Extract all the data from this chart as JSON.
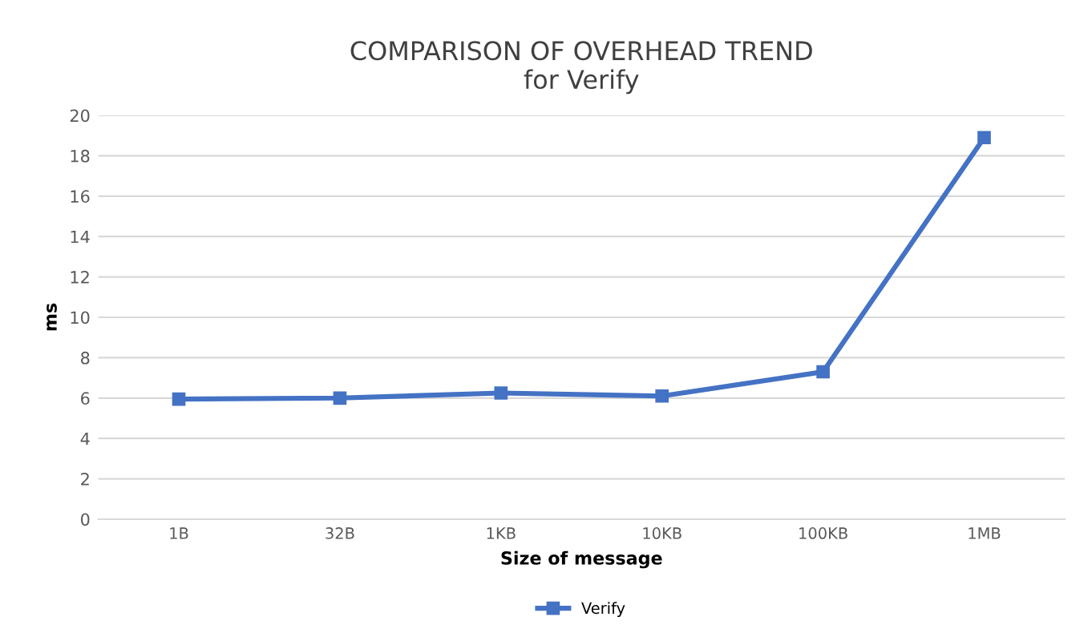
{
  "chart_data": {
    "type": "line",
    "title": "COMPARISON OF OVERHEAD TREND\nfor Verify",
    "xlabel": "Size of message",
    "ylabel": "ms",
    "categories": [
      "1B",
      "32B",
      "1KB",
      "10KB",
      "100KB",
      "1MB"
    ],
    "series": [
      {
        "name": "Verify",
        "color": "#4472c4",
        "values": [
          5.95,
          6.0,
          6.25,
          6.1,
          7.3,
          18.9
        ]
      }
    ],
    "ylim": [
      0,
      20
    ],
    "yticks": [
      0,
      2,
      4,
      6,
      8,
      10,
      12,
      14,
      16,
      18,
      20
    ],
    "grid": "y",
    "legend": "bottom",
    "marker": "square",
    "line_style": "solid"
  }
}
